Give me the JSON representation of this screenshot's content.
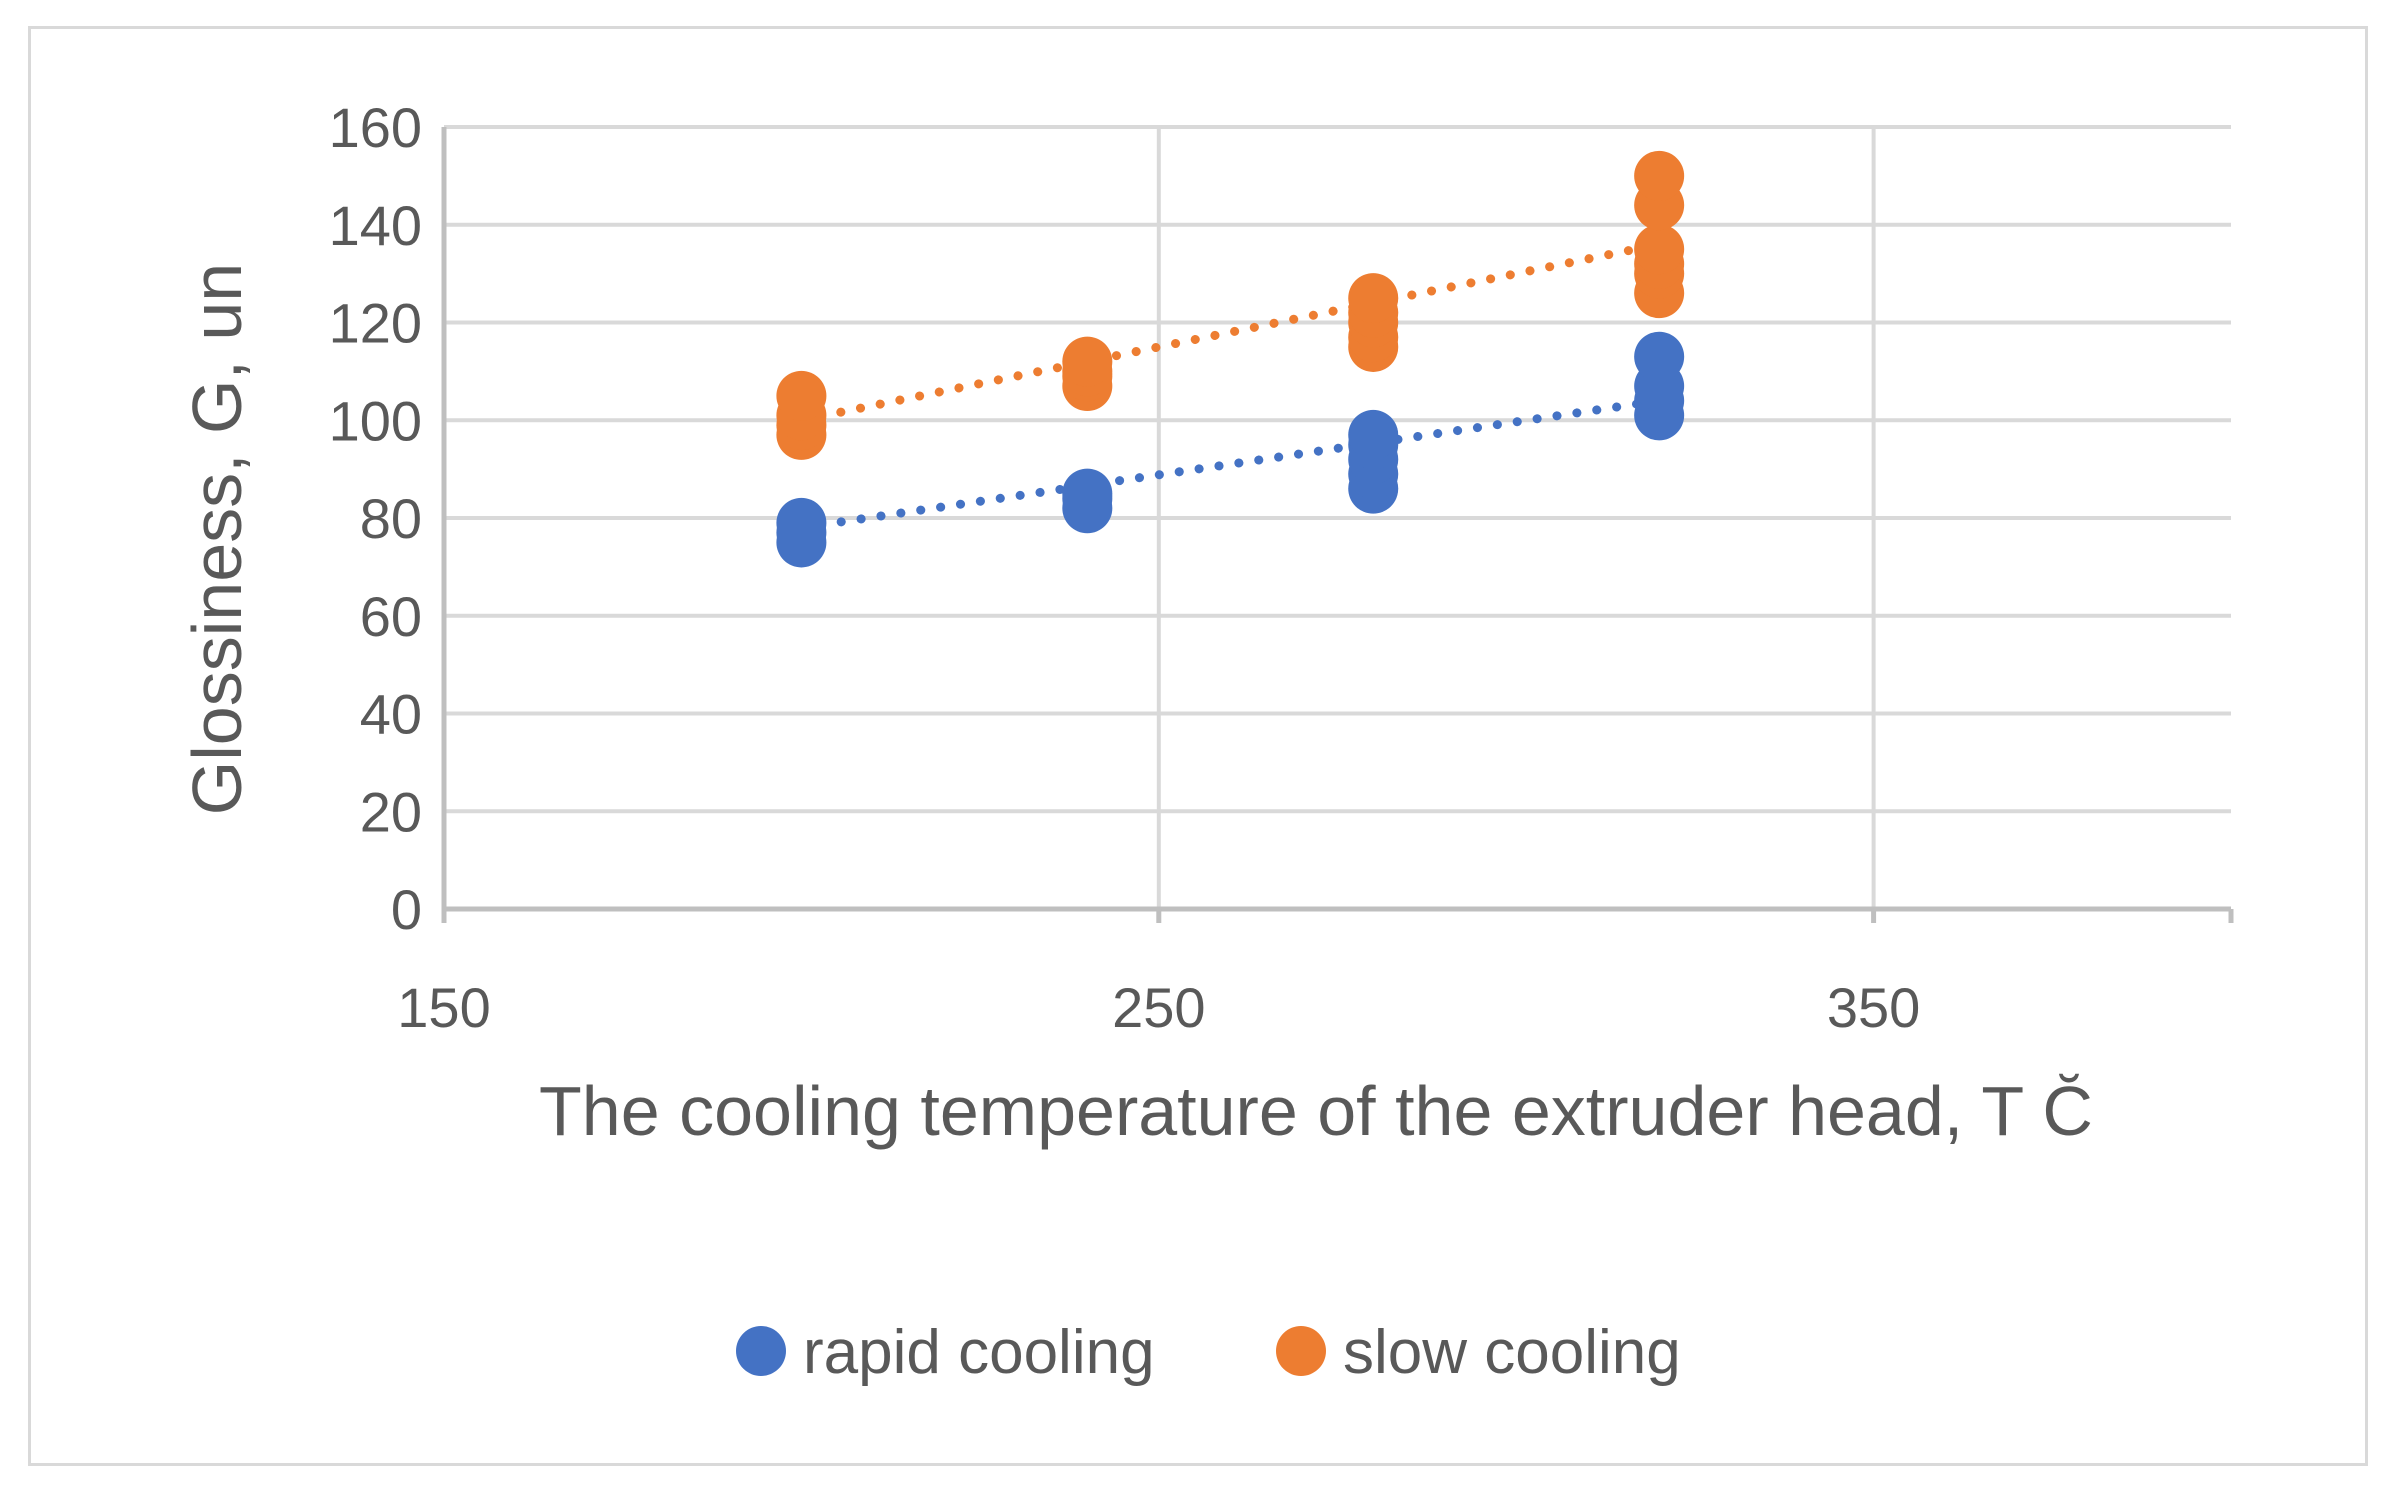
{
  "chart_data": {
    "type": "scatter",
    "title": "",
    "xlabel": "The cooling temperature of the extruder head, T C̆",
    "ylabel": "Glossiness, G, un",
    "xlim": [
      150,
      400
    ],
    "ylim": [
      0,
      160
    ],
    "x_ticks": [
      150,
      250,
      350
    ],
    "y_ticks": [
      0,
      20,
      40,
      60,
      80,
      100,
      120,
      140,
      160
    ],
    "grid": true,
    "legend_position": "bottom",
    "series": [
      {
        "name": "rapid cooling",
        "color": "#4472c4",
        "points": [
          {
            "x": 200,
            "y": 75
          },
          {
            "x": 200,
            "y": 77
          },
          {
            "x": 200,
            "y": 79
          },
          {
            "x": 240,
            "y": 82
          },
          {
            "x": 240,
            "y": 84
          },
          {
            "x": 240,
            "y": 85
          },
          {
            "x": 280,
            "y": 86
          },
          {
            "x": 280,
            "y": 89
          },
          {
            "x": 280,
            "y": 92
          },
          {
            "x": 280,
            "y": 95
          },
          {
            "x": 280,
            "y": 97
          },
          {
            "x": 320,
            "y": 101
          },
          {
            "x": 320,
            "y": 104
          },
          {
            "x": 320,
            "y": 107
          },
          {
            "x": 320,
            "y": 113
          }
        ],
        "trendline": {
          "style": "dotted",
          "x": [
            200,
            320
          ],
          "y": [
            78,
            104
          ]
        }
      },
      {
        "name": "slow cooling",
        "color": "#ed7d31",
        "points": [
          {
            "x": 200,
            "y": 97
          },
          {
            "x": 200,
            "y": 99
          },
          {
            "x": 200,
            "y": 101
          },
          {
            "x": 200,
            "y": 105
          },
          {
            "x": 240,
            "y": 107
          },
          {
            "x": 240,
            "y": 109
          },
          {
            "x": 240,
            "y": 110
          },
          {
            "x": 240,
            "y": 112
          },
          {
            "x": 280,
            "y": 115
          },
          {
            "x": 280,
            "y": 117
          },
          {
            "x": 280,
            "y": 120
          },
          {
            "x": 280,
            "y": 122
          },
          {
            "x": 280,
            "y": 125
          },
          {
            "x": 320,
            "y": 126
          },
          {
            "x": 320,
            "y": 130
          },
          {
            "x": 320,
            "y": 132
          },
          {
            "x": 320,
            "y": 135
          },
          {
            "x": 320,
            "y": 144
          },
          {
            "x": 320,
            "y": 150
          }
        ],
        "trendline": {
          "style": "dotted",
          "x": [
            200,
            320
          ],
          "y": [
            100,
            136
          ]
        }
      }
    ]
  }
}
